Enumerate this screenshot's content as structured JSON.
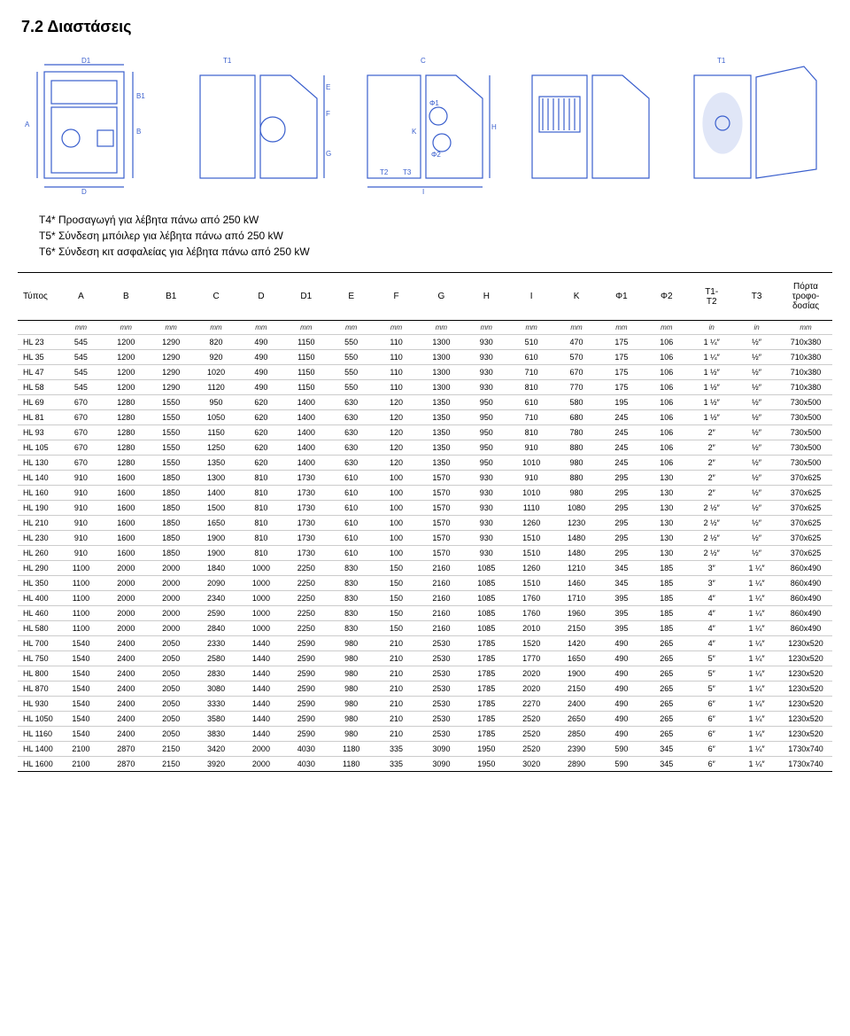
{
  "section_title": "7.2  Διαστάσεις",
  "notes": [
    "T4* Προσαγωγή για λέβητα πάνω από 250 kW",
    "T5* Σύνδεση µπόιλερ για λέβητα πάνω από 250 kW",
    "T6* Σύνδεση κιτ ασφαλείας για λέβητα πάνω από 250 kW"
  ],
  "table": {
    "columns": [
      "Τύπος",
      "A",
      "B",
      "B1",
      "C",
      "D",
      "D1",
      "E",
      "F",
      "G",
      "H",
      "I",
      "K",
      "Φ1",
      "Φ2",
      "T1-\nT2",
      "T3",
      "Πόρτα\nτροφο-\nδοσίας"
    ],
    "units": [
      "",
      "mm",
      "mm",
      "mm",
      "mm",
      "mm",
      "mm",
      "mm",
      "mm",
      "mm",
      "mm",
      "mm",
      "mm",
      "mm",
      "mm",
      "in",
      "in",
      "mm"
    ],
    "rows": [
      [
        "HL 23",
        "545",
        "1200",
        "1290",
        "820",
        "490",
        "1150",
        "550",
        "110",
        "1300",
        "930",
        "510",
        "470",
        "175",
        "106",
        "1 ¼″",
        "½″",
        "710x380"
      ],
      [
        "HL 35",
        "545",
        "1200",
        "1290",
        "920",
        "490",
        "1150",
        "550",
        "110",
        "1300",
        "930",
        "610",
        "570",
        "175",
        "106",
        "1 ¼″",
        "½″",
        "710x380"
      ],
      [
        "HL 47",
        "545",
        "1200",
        "1290",
        "1020",
        "490",
        "1150",
        "550",
        "110",
        "1300",
        "930",
        "710",
        "670",
        "175",
        "106",
        "1 ½″",
        "½″",
        "710x380"
      ],
      [
        "HL 58",
        "545",
        "1200",
        "1290",
        "1120",
        "490",
        "1150",
        "550",
        "110",
        "1300",
        "930",
        "810",
        "770",
        "175",
        "106",
        "1 ½″",
        "½″",
        "710x380"
      ],
      [
        "HL 69",
        "670",
        "1280",
        "1550",
        "950",
        "620",
        "1400",
        "630",
        "120",
        "1350",
        "950",
        "610",
        "580",
        "195",
        "106",
        "1 ½″",
        "½″",
        "730x500"
      ],
      [
        "HL 81",
        "670",
        "1280",
        "1550",
        "1050",
        "620",
        "1400",
        "630",
        "120",
        "1350",
        "950",
        "710",
        "680",
        "245",
        "106",
        "1 ½″",
        "½″",
        "730x500"
      ],
      [
        "HL 93",
        "670",
        "1280",
        "1550",
        "1150",
        "620",
        "1400",
        "630",
        "120",
        "1350",
        "950",
        "810",
        "780",
        "245",
        "106",
        "2″",
        "½″",
        "730x500"
      ],
      [
        "HL 105",
        "670",
        "1280",
        "1550",
        "1250",
        "620",
        "1400",
        "630",
        "120",
        "1350",
        "950",
        "910",
        "880",
        "245",
        "106",
        "2″",
        "½″",
        "730x500"
      ],
      [
        "HL 130",
        "670",
        "1280",
        "1550",
        "1350",
        "620",
        "1400",
        "630",
        "120",
        "1350",
        "950",
        "1010",
        "980",
        "245",
        "106",
        "2″",
        "½″",
        "730x500"
      ],
      [
        "HL 140",
        "910",
        "1600",
        "1850",
        "1300",
        "810",
        "1730",
        "610",
        "100",
        "1570",
        "930",
        "910",
        "880",
        "295",
        "130",
        "2″",
        "½″",
        "370x625"
      ],
      [
        "HL 160",
        "910",
        "1600",
        "1850",
        "1400",
        "810",
        "1730",
        "610",
        "100",
        "1570",
        "930",
        "1010",
        "980",
        "295",
        "130",
        "2″",
        "½″",
        "370x625"
      ],
      [
        "HL 190",
        "910",
        "1600",
        "1850",
        "1500",
        "810",
        "1730",
        "610",
        "100",
        "1570",
        "930",
        "1110",
        "1080",
        "295",
        "130",
        "2 ½″",
        "½″",
        "370x625"
      ],
      [
        "HL 210",
        "910",
        "1600",
        "1850",
        "1650",
        "810",
        "1730",
        "610",
        "100",
        "1570",
        "930",
        "1260",
        "1230",
        "295",
        "130",
        "2 ½″",
        "½″",
        "370x625"
      ],
      [
        "HL 230",
        "910",
        "1600",
        "1850",
        "1900",
        "810",
        "1730",
        "610",
        "100",
        "1570",
        "930",
        "1510",
        "1480",
        "295",
        "130",
        "2 ½″",
        "½″",
        "370x625"
      ],
      [
        "HL 260",
        "910",
        "1600",
        "1850",
        "1900",
        "810",
        "1730",
        "610",
        "100",
        "1570",
        "930",
        "1510",
        "1480",
        "295",
        "130",
        "2 ½″",
        "½″",
        "370x625"
      ],
      [
        "HL 290",
        "1100",
        "2000",
        "2000",
        "1840",
        "1000",
        "2250",
        "830",
        "150",
        "2160",
        "1085",
        "1260",
        "1210",
        "345",
        "185",
        "3″",
        "1 ¼″",
        "860x490"
      ],
      [
        "HL 350",
        "1100",
        "2000",
        "2000",
        "2090",
        "1000",
        "2250",
        "830",
        "150",
        "2160",
        "1085",
        "1510",
        "1460",
        "345",
        "185",
        "3″",
        "1 ¼″",
        "860x490"
      ],
      [
        "HL 400",
        "1100",
        "2000",
        "2000",
        "2340",
        "1000",
        "2250",
        "830",
        "150",
        "2160",
        "1085",
        "1760",
        "1710",
        "395",
        "185",
        "4″",
        "1 ¼″",
        "860x490"
      ],
      [
        "HL 460",
        "1100",
        "2000",
        "2000",
        "2590",
        "1000",
        "2250",
        "830",
        "150",
        "2160",
        "1085",
        "1760",
        "1960",
        "395",
        "185",
        "4″",
        "1 ¼″",
        "860x490"
      ],
      [
        "HL 580",
        "1100",
        "2000",
        "2000",
        "2840",
        "1000",
        "2250",
        "830",
        "150",
        "2160",
        "1085",
        "2010",
        "2150",
        "395",
        "185",
        "4″",
        "1 ¼″",
        "860x490"
      ],
      [
        "HL 700",
        "1540",
        "2400",
        "2050",
        "2330",
        "1440",
        "2590",
        "980",
        "210",
        "2530",
        "1785",
        "1520",
        "1420",
        "490",
        "265",
        "4″",
        "1 ¼″",
        "1230x520"
      ],
      [
        "HL 750",
        "1540",
        "2400",
        "2050",
        "2580",
        "1440",
        "2590",
        "980",
        "210",
        "2530",
        "1785",
        "1770",
        "1650",
        "490",
        "265",
        "5″",
        "1 ¼″",
        "1230x520"
      ],
      [
        "HL 800",
        "1540",
        "2400",
        "2050",
        "2830",
        "1440",
        "2590",
        "980",
        "210",
        "2530",
        "1785",
        "2020",
        "1900",
        "490",
        "265",
        "5″",
        "1 ¼″",
        "1230x520"
      ],
      [
        "HL 870",
        "1540",
        "2400",
        "2050",
        "3080",
        "1440",
        "2590",
        "980",
        "210",
        "2530",
        "1785",
        "2020",
        "2150",
        "490",
        "265",
        "5″",
        "1 ¼″",
        "1230x520"
      ],
      [
        "HL 930",
        "1540",
        "2400",
        "2050",
        "3330",
        "1440",
        "2590",
        "980",
        "210",
        "2530",
        "1785",
        "2270",
        "2400",
        "490",
        "265",
        "6″",
        "1 ¼″",
        "1230x520"
      ],
      [
        "HL 1050",
        "1540",
        "2400",
        "2050",
        "3580",
        "1440",
        "2590",
        "980",
        "210",
        "2530",
        "1785",
        "2520",
        "2650",
        "490",
        "265",
        "6″",
        "1 ¼″",
        "1230x520"
      ],
      [
        "HL 1160",
        "1540",
        "2400",
        "2050",
        "3830",
        "1440",
        "2590",
        "980",
        "210",
        "2530",
        "1785",
        "2520",
        "2850",
        "490",
        "265",
        "6″",
        "1 ¼″",
        "1230x520"
      ],
      [
        "HL 1400",
        "2100",
        "2870",
        "2150",
        "3420",
        "2000",
        "4030",
        "1180",
        "335",
        "3090",
        "1950",
        "2520",
        "2390",
        "590",
        "345",
        "6″",
        "1 ¼″",
        "1730x740"
      ],
      [
        "HL 1600",
        "2100",
        "2870",
        "2150",
        "3920",
        "2000",
        "4030",
        "1180",
        "335",
        "3090",
        "1950",
        "3020",
        "2890",
        "590",
        "345",
        "6″",
        "1 ¼″",
        "1730x740"
      ]
    ]
  },
  "diagram_labels": {
    "d1": [
      "D1",
      "A",
      "D",
      "B1",
      "B"
    ],
    "d2": [
      "T1",
      "E",
      "F",
      "G"
    ],
    "d3": [
      "C",
      "Φ1",
      "K",
      "Φ2",
      "T2",
      "T3",
      "I",
      "H"
    ],
    "d5": [
      "T1"
    ]
  },
  "colors": {
    "diagram_stroke": "#3a5fcd"
  }
}
